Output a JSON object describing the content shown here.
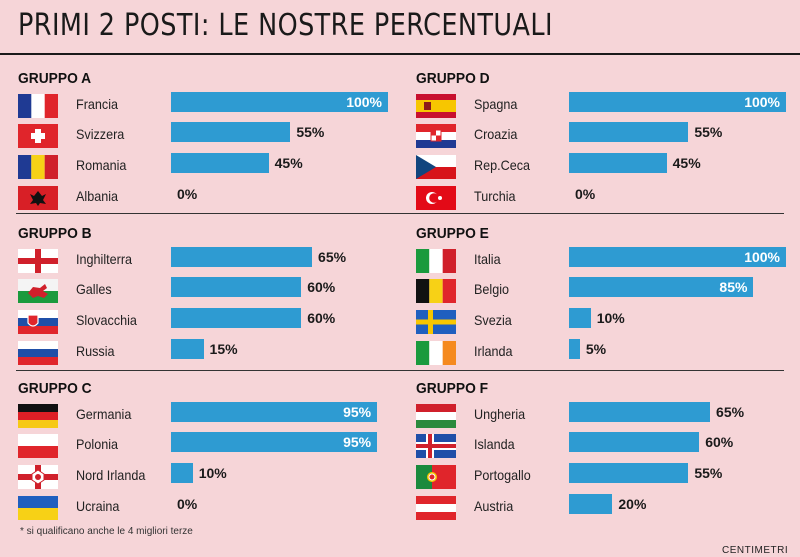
{
  "title": "PRIMI 2 POSTI: LE NOSTRE PERCENTUALI",
  "footnote": "* si qualificano anche le 4 migliori terze",
  "credit": "CENTIMETRI",
  "colors": {
    "bar": "#2e9bd2",
    "background": "#f6d5d8"
  },
  "chart_data": {
    "type": "bar",
    "orientation": "horizontal",
    "unit": "%",
    "xlim": [
      0,
      100
    ],
    "groups": [
      {
        "name": "GRUPPO A",
        "items": [
          {
            "country": "Francia",
            "value": 100,
            "label": "100%",
            "flag": "france-flag"
          },
          {
            "country": "Svizzera",
            "value": 55,
            "label": "55%",
            "flag": "switzerland-flag"
          },
          {
            "country": "Romania",
            "value": 45,
            "label": "45%",
            "flag": "romania-flag"
          },
          {
            "country": "Albania",
            "value": 0,
            "label": "0%",
            "flag": "albania-flag"
          }
        ]
      },
      {
        "name": "GRUPPO B",
        "items": [
          {
            "country": "Inghilterra",
            "value": 65,
            "label": "65%",
            "flag": "england-flag"
          },
          {
            "country": "Galles",
            "value": 60,
            "label": "60%",
            "flag": "wales-flag"
          },
          {
            "country": "Slovacchia",
            "value": 60,
            "label": "60%",
            "flag": "slovakia-flag"
          },
          {
            "country": "Russia",
            "value": 15,
            "label": "15%",
            "flag": "russia-flag"
          }
        ]
      },
      {
        "name": "GRUPPO C",
        "items": [
          {
            "country": "Germania",
            "value": 95,
            "label": "95%",
            "flag": "germany-flag"
          },
          {
            "country": "Polonia",
            "value": 95,
            "label": "95%",
            "flag": "poland-flag"
          },
          {
            "country": "Nord Irlanda",
            "value": 10,
            "label": "10%",
            "flag": "northern-ireland-flag"
          },
          {
            "country": "Ucraina",
            "value": 0,
            "label": "0%",
            "flag": "ukraine-flag"
          }
        ]
      },
      {
        "name": "GRUPPO D",
        "items": [
          {
            "country": "Spagna",
            "value": 100,
            "label": "100%",
            "flag": "spain-flag"
          },
          {
            "country": "Croazia",
            "value": 55,
            "label": "55%",
            "flag": "croatia-flag"
          },
          {
            "country": "Rep.Ceca",
            "value": 45,
            "label": "45%",
            "flag": "czech-flag"
          },
          {
            "country": "Turchia",
            "value": 0,
            "label": "0%",
            "flag": "turkey-flag"
          }
        ]
      },
      {
        "name": "GRUPPO E",
        "items": [
          {
            "country": "Italia",
            "value": 100,
            "label": "100%",
            "flag": "italy-flag"
          },
          {
            "country": "Belgio",
            "value": 85,
            "label": "85%",
            "flag": "belgium-flag"
          },
          {
            "country": "Svezia",
            "value": 10,
            "label": "10%",
            "flag": "sweden-flag"
          },
          {
            "country": "Irlanda",
            "value": 5,
            "label": "5%",
            "flag": "ireland-flag"
          }
        ]
      },
      {
        "name": "GRUPPO F",
        "items": [
          {
            "country": "Ungheria",
            "value": 65,
            "label": "65%",
            "flag": "hungary-flag"
          },
          {
            "country": "Islanda",
            "value": 60,
            "label": "60%",
            "flag": "iceland-flag"
          },
          {
            "country": "Portogallo",
            "value": 55,
            "label": "55%",
            "flag": "portugal-flag"
          },
          {
            "country": "Austria",
            "value": 20,
            "label": "20%",
            "flag": "austria-flag"
          }
        ]
      }
    ]
  }
}
